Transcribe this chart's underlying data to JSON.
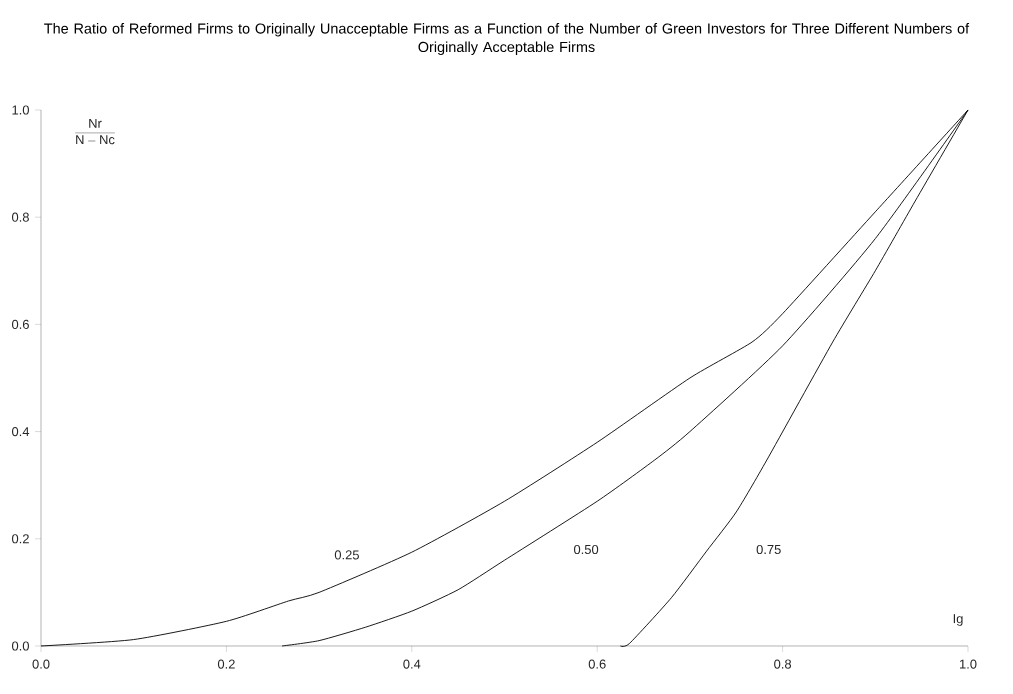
{
  "chart_data": {
    "type": "line",
    "title": "The Ratio of Reformed Firms to Originally Unacceptable Firms as a Function of the Number of Green Investors for Three Different Numbers of Originally Acceptable Firms",
    "xlabel": "Ig",
    "ylabel": "\\frac{\\mathrm{Nr}}{\\mathrm{N}-\\mathrm{Nc}}",
    "series": [
      {
        "name": "0.25",
        "color": "#000000",
        "x": [
          0,
          0.1,
          0.2,
          0.267,
          0.3,
          0.4,
          0.5,
          0.6,
          0.7,
          0.767,
          0.8,
          0.9,
          1.0
        ],
        "values": [
          0,
          0.012,
          0.046,
          0.084,
          0.1,
          0.175,
          0.27,
          0.38,
          0.5,
          0.567,
          0.62,
          0.81,
          1.0
        ]
      },
      {
        "name": "0.50",
        "color": "#000000",
        "x": [
          0.26,
          0.3,
          0.35,
          0.4,
          0.45,
          0.5,
          0.6,
          0.662,
          0.7,
          0.8,
          0.9,
          1.0
        ],
        "values": [
          0,
          0.01,
          0.035,
          0.065,
          0.105,
          0.16,
          0.27,
          0.347,
          0.4,
          0.56,
          0.76,
          1.0
        ]
      },
      {
        "name": "0.75",
        "color": "#000000",
        "x": [
          0.625,
          0.635,
          0.68,
          0.718,
          0.75,
          0.783,
          0.854,
          0.9,
          0.943,
          1.0
        ],
        "values": [
          0,
          0.005,
          0.09,
          0.177,
          0.25,
          0.347,
          0.567,
          0.7,
          0.83,
          1.0
        ]
      }
    ],
    "xlim": [
      0,
      1
    ],
    "ylim": [
      0,
      1
    ],
    "xticks": [
      {
        "value": 0,
        "label": "0.0"
      },
      0.2,
      0.4,
      0.6,
      0.8,
      {
        "value": 1,
        "label": "1.0"
      }
    ],
    "yticks": [
      {
        "value": 0,
        "label": "0.0"
      },
      0.2,
      0.4,
      0.6,
      0.8,
      {
        "value": 1,
        "label": "1.0"
      }
    ],
    "line_style": "solid",
    "marker": "none",
    "grid": false,
    "legend": false
  }
}
